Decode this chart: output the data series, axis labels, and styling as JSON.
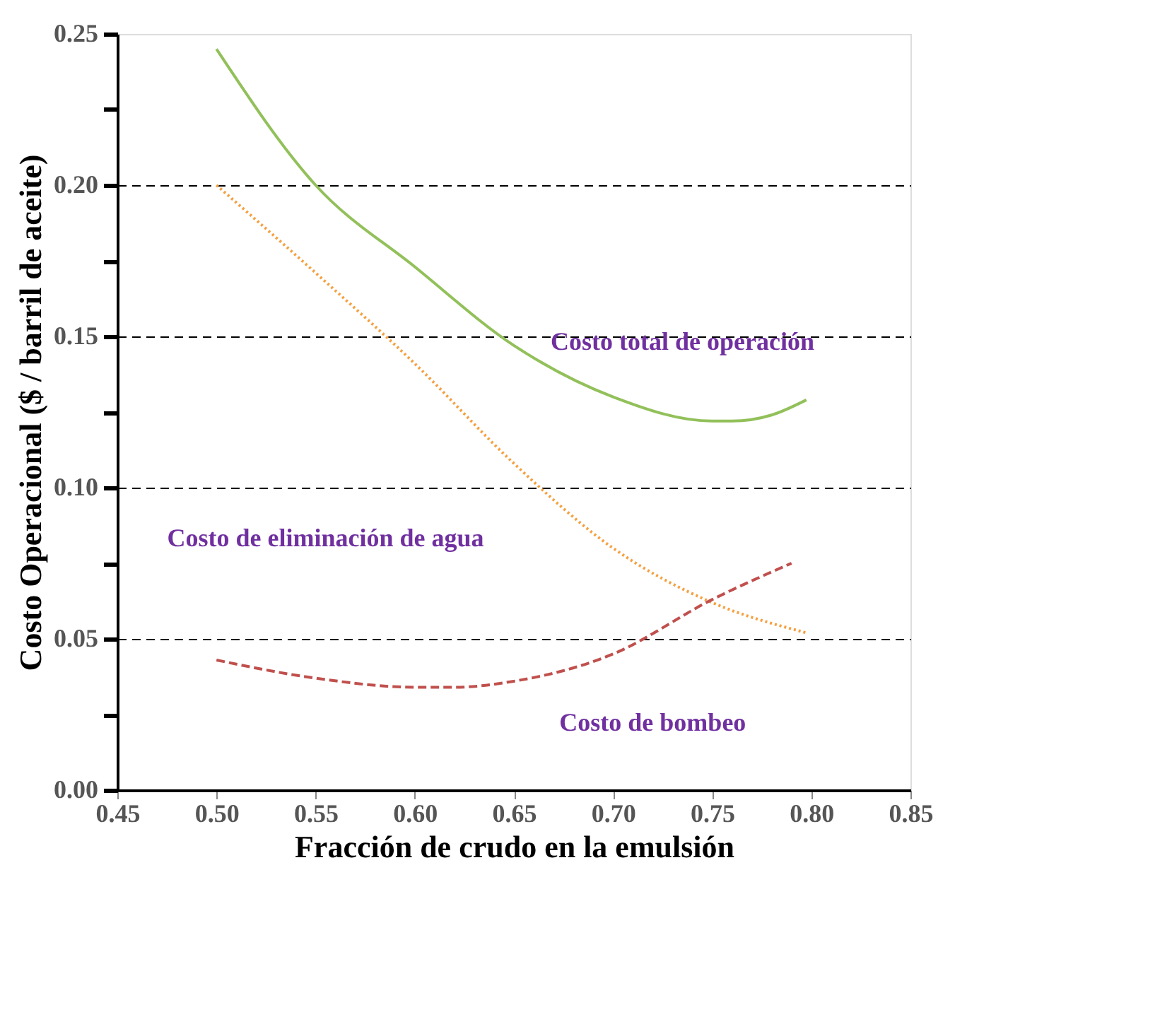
{
  "chart_data": {
    "type": "line",
    "xlabel": "Fracción de crudo en la emulsión",
    "ylabel": "Costo Operacional ($ / barril de aceite)",
    "xlim": [
      0.45,
      0.85
    ],
    "xticks": [
      {
        "value": 0.45,
        "label": "0.45"
      },
      {
        "value": 0.5,
        "label": "0.50"
      },
      {
        "value": 0.55,
        "label": "0.55"
      },
      {
        "value": 0.6,
        "label": "0.60"
      },
      {
        "value": 0.65,
        "label": "0.65"
      },
      {
        "value": 0.7,
        "label": "0.70"
      },
      {
        "value": 0.75,
        "label": "0.75"
      },
      {
        "value": 0.8,
        "label": "0.80"
      },
      {
        "value": 0.85,
        "label": "0.85"
      }
    ],
    "ylim": [
      0,
      0.25
    ],
    "yticks": [
      {
        "value": 0,
        "label": "0.00"
      },
      {
        "value": 0.025,
        "label": null
      },
      {
        "value": 0.05,
        "label": "0.05"
      },
      {
        "value": 0.075,
        "label": null
      },
      {
        "value": 0.1,
        "label": "0.10"
      },
      {
        "value": 0.125,
        "label": null
      },
      {
        "value": 0.15,
        "label": "0.15"
      },
      {
        "value": 0.175,
        "label": null
      },
      {
        "value": 0.2,
        "label": "0.20"
      },
      {
        "value": 0.225,
        "label": null
      },
      {
        "value": 0.25,
        "label": "0.25"
      }
    ],
    "grid": "y",
    "series": [
      {
        "name": "Costo total de operación",
        "color": "#92c05a",
        "line_style": "solid",
        "x": [
          0.5,
          0.55,
          0.6,
          0.65,
          0.7,
          0.75,
          0.76,
          0.78,
          0.7975
        ],
        "values": [
          0.245,
          0.2,
          0.173,
          0.147,
          0.13,
          0.122,
          0.122,
          0.124,
          0.129
        ]
      },
      {
        "name": "Costo de eliminación de agua",
        "color": "#f5a040",
        "line_style": "dotted",
        "x": [
          0.5,
          0.55,
          0.6,
          0.65,
          0.7,
          0.75,
          0.7975
        ],
        "values": [
          0.2,
          0.171,
          0.141,
          0.108,
          0.08,
          0.062,
          0.052
        ]
      },
      {
        "name": "Costo de bombeo",
        "color": "#c0504d",
        "line_style": "dashed",
        "x": [
          0.5,
          0.55,
          0.6,
          0.62,
          0.65,
          0.7,
          0.75,
          0.79
        ],
        "values": [
          0.043,
          0.037,
          0.034,
          0.034,
          0.036,
          0.045,
          0.063,
          0.075
        ]
      }
    ]
  }
}
